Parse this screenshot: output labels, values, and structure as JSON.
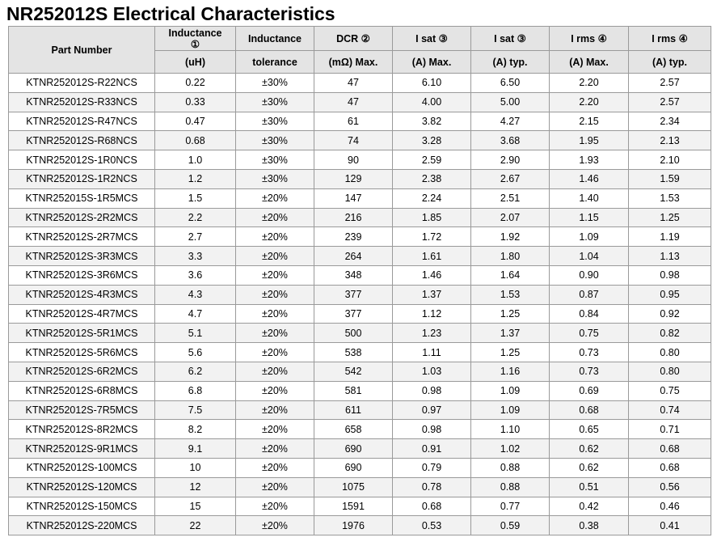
{
  "title": "NR252012S Electrical Characteristics",
  "header": {
    "part_number": "Part Number",
    "inductance_top": "Inductance",
    "inductance_mark": "①",
    "inductance_unit": "(uH)",
    "tolerance_top": "Inductance",
    "tolerance_bottom": "tolerance",
    "dcr_top": "DCR ②",
    "dcr_bottom": "(mΩ) Max.",
    "isat_max_top": "I sat ③",
    "isat_max_bottom": "(A) Max.",
    "isat_typ_top": "I sat ③",
    "isat_typ_bottom": "(A) typ.",
    "irms_max_top": "I rms ④",
    "irms_max_bottom": "(A) Max.",
    "irms_typ_top": "I rms ④",
    "irms_typ_bottom": "(A) typ."
  },
  "rows": [
    [
      "KTNR252012S-R22NCS",
      "0.22",
      "±30%",
      "47",
      "6.10",
      "6.50",
      "2.20",
      "2.57"
    ],
    [
      "KTNR252012S-R33NCS",
      "0.33",
      "±30%",
      "47",
      "4.00",
      "5.00",
      "2.20",
      "2.57"
    ],
    [
      "KTNR252012S-R47NCS",
      "0.47",
      "±30%",
      "61",
      "3.82",
      "4.27",
      "2.15",
      "2.34"
    ],
    [
      "KTNR252012S-R68NCS",
      "0.68",
      "±30%",
      "74",
      "3.28",
      "3.68",
      "1.95",
      "2.13"
    ],
    [
      "KTNR252012S-1R0NCS",
      "1.0",
      "±30%",
      "90",
      "2.59",
      "2.90",
      "1.93",
      "2.10"
    ],
    [
      "KTNR252012S-1R2NCS",
      "1.2",
      "±30%",
      "129",
      "2.38",
      "2.67",
      "1.46",
      "1.59"
    ],
    [
      "KTNR252015S-1R5MCS",
      "1.5",
      "±20%",
      "147",
      "2.24",
      "2.51",
      "1.40",
      "1.53"
    ],
    [
      "KTNR252012S-2R2MCS",
      "2.2",
      "±20%",
      "216",
      "1.85",
      "2.07",
      "1.15",
      "1.25"
    ],
    [
      "KTNR252012S-2R7MCS",
      "2.7",
      "±20%",
      "239",
      "1.72",
      "1.92",
      "1.09",
      "1.19"
    ],
    [
      "KTNR252012S-3R3MCS",
      "3.3",
      "±20%",
      "264",
      "1.61",
      "1.80",
      "1.04",
      "1.13"
    ],
    [
      "KTNR252012S-3R6MCS",
      "3.6",
      "±20%",
      "348",
      "1.46",
      "1.64",
      "0.90",
      "0.98"
    ],
    [
      "KTNR252012S-4R3MCS",
      "4.3",
      "±20%",
      "377",
      "1.37",
      "1.53",
      "0.87",
      "0.95"
    ],
    [
      "KTNR252012S-4R7MCS",
      "4.7",
      "±20%",
      "377",
      "1.12",
      "1.25",
      "0.84",
      "0.92"
    ],
    [
      "KTNR252012S-5R1MCS",
      "5.1",
      "±20%",
      "500",
      "1.23",
      "1.37",
      "0.75",
      "0.82"
    ],
    [
      "KTNR252012S-5R6MCS",
      "5.6",
      "±20%",
      "538",
      "1.11",
      "1.25",
      "0.73",
      "0.80"
    ],
    [
      "KTNR252012S-6R2MCS",
      "6.2",
      "±20%",
      "542",
      "1.03",
      "1.16",
      "0.73",
      "0.80"
    ],
    [
      "KTNR252012S-6R8MCS",
      "6.8",
      "±20%",
      "581",
      "0.98",
      "1.09",
      "0.69",
      "0.75"
    ],
    [
      "KTNR252012S-7R5MCS",
      "7.5",
      "±20%",
      "611",
      "0.97",
      "1.09",
      "0.68",
      "0.74"
    ],
    [
      "KTNR252012S-8R2MCS",
      "8.2",
      "±20%",
      "658",
      "0.98",
      "1.10",
      "0.65",
      "0.71"
    ],
    [
      "KTNR252012S-9R1MCS",
      "9.1",
      "±20%",
      "690",
      "0.91",
      "1.02",
      "0.62",
      "0.68"
    ],
    [
      "KTNR252012S-100MCS",
      "10",
      "±20%",
      "690",
      "0.79",
      "0.88",
      "0.62",
      "0.68"
    ],
    [
      "KTNR252012S-120MCS",
      "12",
      "±20%",
      "1075",
      "0.78",
      "0.88",
      "0.51",
      "0.56"
    ],
    [
      "KTNR252012S-150MCS",
      "15",
      "±20%",
      "1591",
      "0.68",
      "0.77",
      "0.42",
      "0.46"
    ],
    [
      "KTNR252012S-220MCS",
      "22",
      "±20%",
      "1976",
      "0.53",
      "0.59",
      "0.38",
      "0.41"
    ]
  ]
}
